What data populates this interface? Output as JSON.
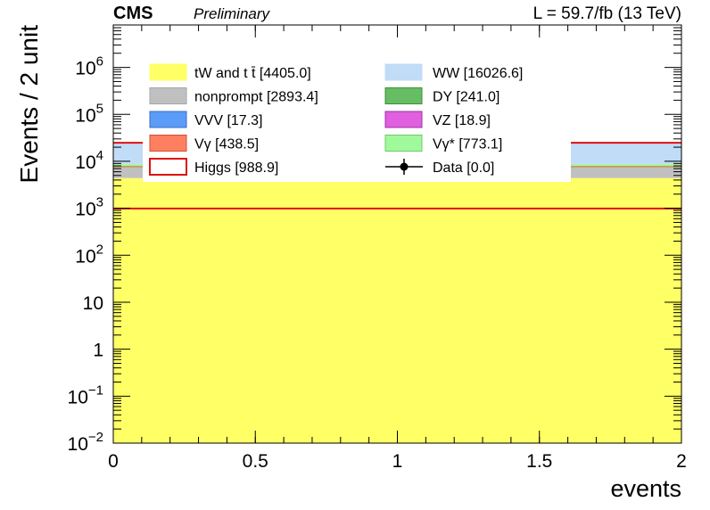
{
  "header": {
    "experiment": "CMS",
    "status": "Preliminary",
    "lumi": "L = 59.7/fb (13 TeV)"
  },
  "chart_data": {
    "type": "bar",
    "ylabel": "Events / 2 unit",
    "xlabel": "events",
    "xlim": [
      0,
      2
    ],
    "ylim": [
      0.01,
      8000000
    ],
    "yscale": "log",
    "grid": false,
    "x_ticks": [
      {
        "value": 0,
        "label": "0"
      },
      {
        "value": 0.5,
        "label": "0.5"
      },
      {
        "value": 1,
        "label": "1"
      },
      {
        "value": 1.5,
        "label": "1.5"
      },
      {
        "value": 2,
        "label": "2"
      }
    ],
    "y_ticks": [
      {
        "value": 0.01,
        "base": "10",
        "exp": "−2"
      },
      {
        "value": 0.1,
        "base": "10",
        "exp": "−1"
      },
      {
        "value": 1,
        "base": "1",
        "exp": ""
      },
      {
        "value": 10,
        "base": "10",
        "exp": ""
      },
      {
        "value": 100,
        "base": "10",
        "exp": "2"
      },
      {
        "value": 1000,
        "base": "10",
        "exp": "3"
      },
      {
        "value": 10000,
        "base": "10",
        "exp": "4"
      },
      {
        "value": 100000,
        "base": "10",
        "exp": "5"
      },
      {
        "value": 1000000,
        "base": "10",
        "exp": "6"
      }
    ],
    "stack_order": [
      "tW and t t̄",
      "nonprompt",
      "DY",
      "VVV",
      "VZ",
      "Vγ",
      "Vγ*",
      "WW"
    ],
    "series": [
      {
        "name": "tW and t t̄",
        "value": 4405.0,
        "color": "#ffff66",
        "edge": "#ffff66",
        "style": "fill"
      },
      {
        "name": "WW",
        "value": 16026.6,
        "color": "#c0dcf6",
        "edge": "#c0dcf6",
        "style": "fill"
      },
      {
        "name": "nonprompt",
        "value": 2893.4,
        "color": "#c0c0c0",
        "edge": "#a6a6a6",
        "style": "fill"
      },
      {
        "name": "DY",
        "value": 241.0,
        "color": "#66bd63",
        "edge": "#3f8f3a",
        "style": "fill"
      },
      {
        "name": "VVV",
        "value": 17.3,
        "color": "#5a9cf8",
        "edge": "#3a6cc8",
        "style": "fill"
      },
      {
        "name": "VZ",
        "value": 18.9,
        "color": "#e060e0",
        "edge": "#a030a0",
        "style": "fill"
      },
      {
        "name": "Vγ",
        "value": 438.5,
        "color": "#fe8060",
        "edge": "#d05030",
        "style": "fill"
      },
      {
        "name": "Vγ*",
        "value": 773.1,
        "color": "#a0fa9c",
        "edge": "#70c86a",
        "style": "fill"
      },
      {
        "name": "Higgs",
        "value": 988.9,
        "color": "#ffffff",
        "edge": "#e01010",
        "style": "line"
      },
      {
        "name": "Data",
        "value": 0.0,
        "color": "#000000",
        "edge": "#000000",
        "style": "marker"
      }
    ],
    "legend_placement": "top"
  }
}
